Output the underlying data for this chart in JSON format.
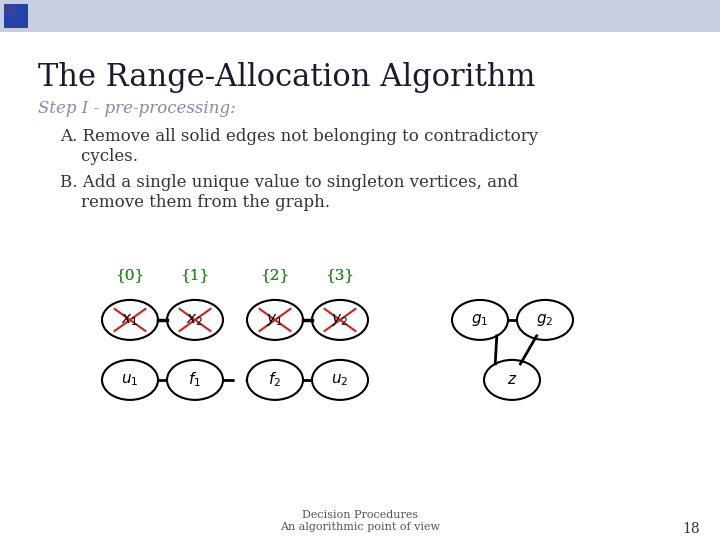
{
  "title": "The Range-Allocation Algorithm",
  "step_label": "Step I - pre-processing:",
  "bullet_A": "A. Remove all solid edges not belonging to contradictory\n    cycles.",
  "bullet_B": "B. Add a single unique value to singleton vertices, and\n    remove them from the graph.",
  "footer_line1": "Decision Procedures",
  "footer_line2": "An algorithmic point of view",
  "page_number": "18",
  "bg_color": "#ffffff",
  "title_color": "#1a1a2e",
  "step_color": "#8888aa",
  "body_color": "#333333",
  "green_color": "#228B22",
  "node_labels_top": [
    "x_1",
    "x_2",
    "y_1",
    "y_2"
  ],
  "node_labels_bottom": [
    "u_1",
    "f_1",
    "f_2",
    "u_2"
  ],
  "set_labels": [
    "{0}",
    "{1}",
    "{2}",
    "{3}"
  ],
  "node_labels_right": [
    "g_1",
    "g_2",
    "z"
  ]
}
